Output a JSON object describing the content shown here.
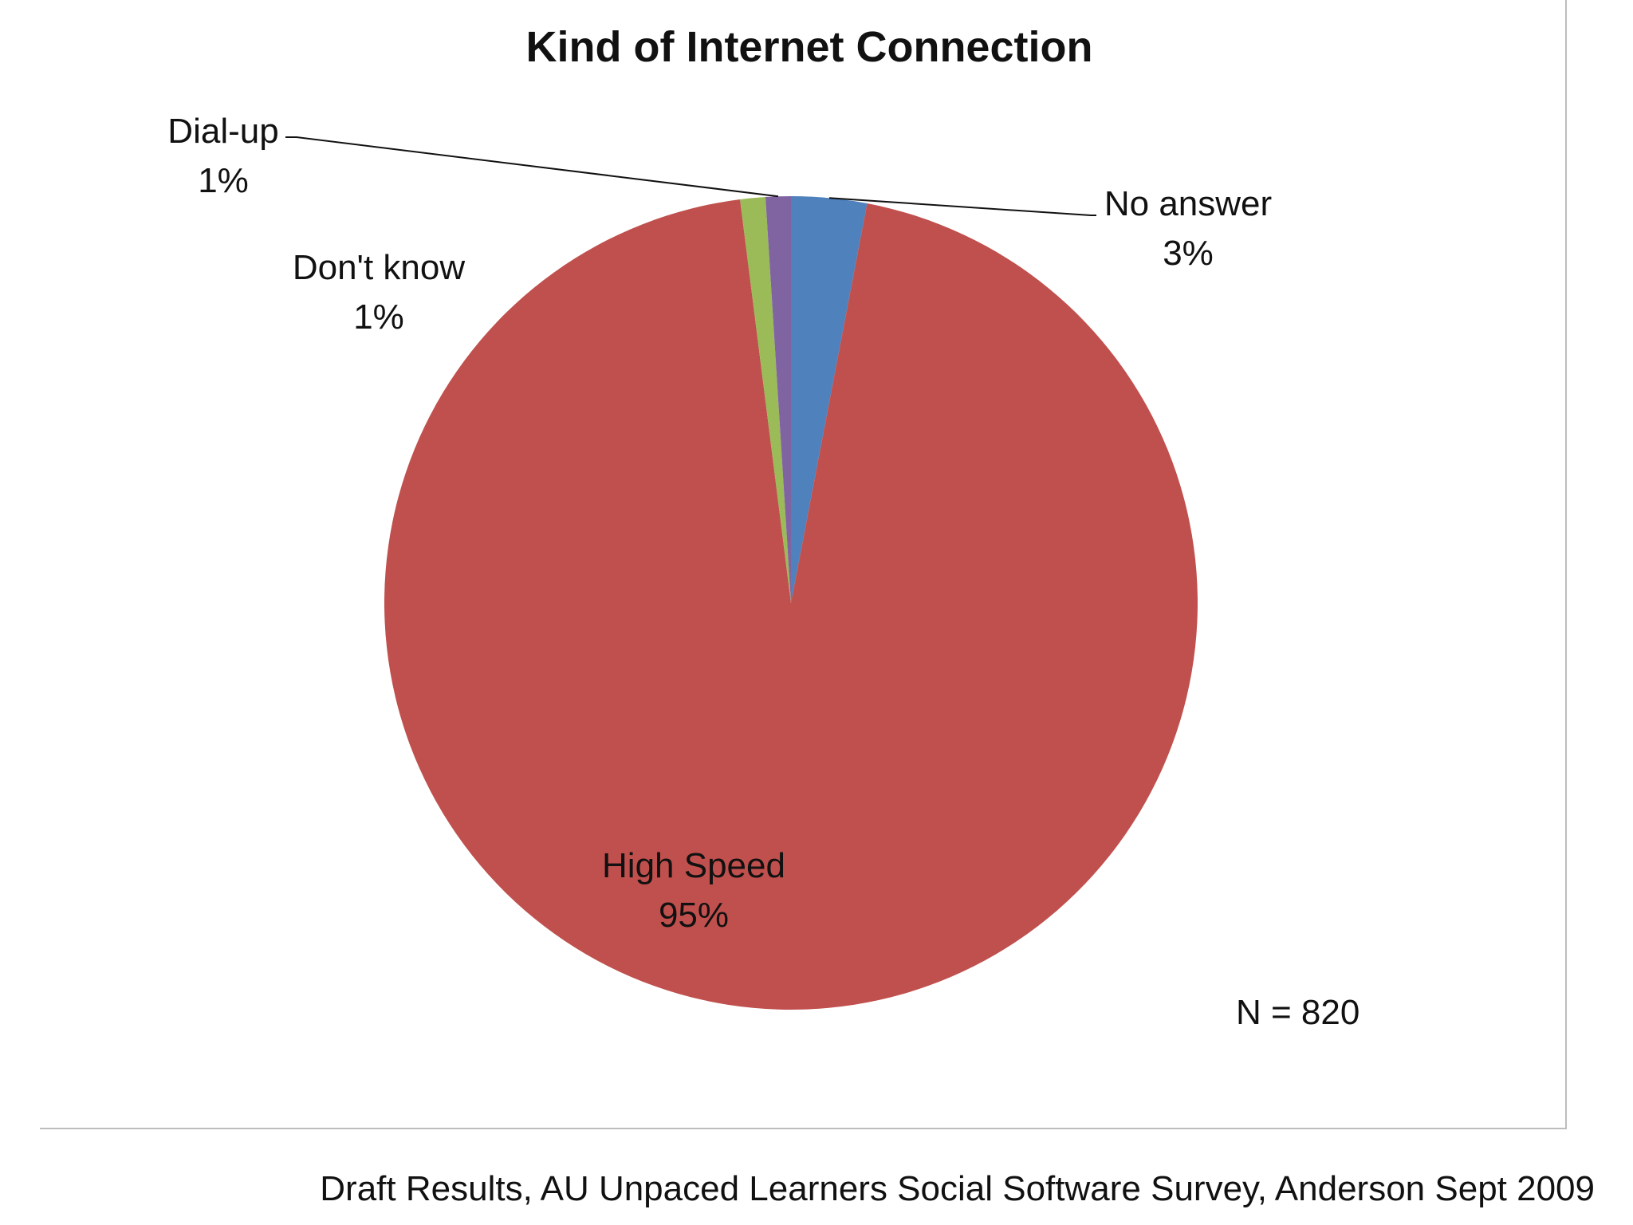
{
  "chart_data": {
    "type": "pie",
    "title": "Kind of Internet Connection",
    "categories": [
      "No answer",
      "High Speed",
      "Don't know",
      "Dial-up"
    ],
    "values": [
      3,
      95,
      1,
      1
    ],
    "percent_labels": [
      "3%",
      "95%",
      "1%",
      "1%"
    ],
    "colors": [
      "#4F81BD",
      "#C0504D",
      "#9BBB59",
      "#8064A2"
    ],
    "legend": "none",
    "annotation": "N = 820"
  },
  "footer": {
    "source": "Draft Results, AU Unpaced Learners Social Software Survey, Anderson Sept 2009"
  }
}
